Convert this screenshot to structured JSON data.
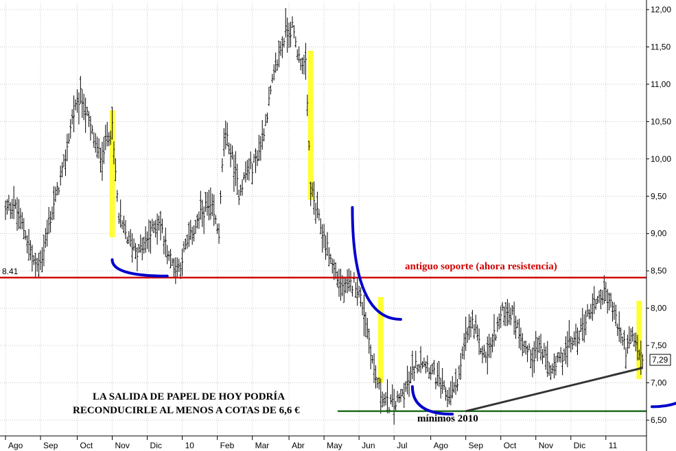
{
  "chart_data": {
    "type": "bar",
    "subtype": "ohlc-price-chart",
    "grid": true,
    "y_axis": {
      "position": "right",
      "ticks": [
        "6,50",
        "7,00",
        "7,50",
        "8,00",
        "8,50",
        "9,00",
        "9,50",
        "10,00",
        "10,50",
        "11,00",
        "11,50",
        "12,00"
      ],
      "tick_values": [
        6.5,
        7.0,
        7.5,
        8.0,
        8.5,
        9.0,
        9.5,
        10.0,
        10.5,
        11.0,
        11.5,
        12.0
      ],
      "ylim": [
        6.5,
        12.0
      ]
    },
    "x_axis": {
      "ticks": [
        "Ago",
        "Sep",
        "Oct",
        "Nov",
        "Dic",
        "10",
        "Feb",
        "Mar",
        "Abr",
        "May",
        "Jun",
        "Jul",
        "Ago",
        "Sep",
        "Oct",
        "Nov",
        "Dic",
        "11"
      ],
      "tick_index": [
        0,
        21,
        43,
        64,
        85,
        106,
        127,
        148,
        170,
        191,
        212,
        233,
        255,
        276,
        297,
        318,
        339,
        360
      ],
      "n_points": 383
    },
    "price_path": [
      [
        0,
        9.3
      ],
      [
        5,
        9.4
      ],
      [
        12,
        9.0
      ],
      [
        18,
        8.55
      ],
      [
        22,
        8.7
      ],
      [
        28,
        9.3
      ],
      [
        35,
        9.9
      ],
      [
        40,
        10.55
      ],
      [
        45,
        10.85
      ],
      [
        50,
        10.5
      ],
      [
        55,
        10.1
      ],
      [
        58,
        10.05
      ],
      [
        61,
        10.3
      ],
      [
        64,
        10.4
      ],
      [
        68,
        9.2
      ],
      [
        74,
        8.9
      ],
      [
        80,
        8.75
      ],
      [
        86,
        8.95
      ],
      [
        92,
        9.2
      ],
      [
        96,
        8.85
      ],
      [
        100,
        8.6
      ],
      [
        104,
        8.55
      ],
      [
        108,
        8.8
      ],
      [
        112,
        9.0
      ],
      [
        116,
        9.2
      ],
      [
        120,
        9.35
      ],
      [
        124,
        9.3
      ],
      [
        128,
        9.0
      ],
      [
        131,
        10.3
      ],
      [
        134,
        10.2
      ],
      [
        137,
        9.9
      ],
      [
        140,
        9.55
      ],
      [
        144,
        9.8
      ],
      [
        148,
        9.9
      ],
      [
        152,
        10.1
      ],
      [
        156,
        10.5
      ],
      [
        160,
        11.0
      ],
      [
        164,
        11.4
      ],
      [
        168,
        11.7
      ],
      [
        172,
        11.75
      ],
      [
        176,
        11.35
      ],
      [
        180,
        11.25
      ],
      [
        183,
        9.6
      ],
      [
        187,
        9.25
      ],
      [
        191,
        8.95
      ],
      [
        195,
        8.65
      ],
      [
        199,
        8.4
      ],
      [
        203,
        8.25
      ],
      [
        207,
        8.3
      ],
      [
        210,
        8.35
      ],
      [
        214,
        8.05
      ],
      [
        218,
        7.6
      ],
      [
        221,
        7.15
      ],
      [
        225,
        6.85
      ],
      [
        229,
        6.72
      ],
      [
        233,
        6.7
      ],
      [
        237,
        6.8
      ],
      [
        241,
        6.95
      ],
      [
        245,
        7.2
      ],
      [
        249,
        7.3
      ],
      [
        253,
        7.25
      ],
      [
        257,
        7.1
      ],
      [
        261,
        6.95
      ],
      [
        265,
        6.8
      ],
      [
        269,
        6.9
      ],
      [
        273,
        7.2
      ],
      [
        276,
        7.6
      ],
      [
        280,
        7.8
      ],
      [
        284,
        7.5
      ],
      [
        288,
        7.35
      ],
      [
        292,
        7.55
      ],
      [
        296,
        7.85
      ],
      [
        300,
        8.0
      ],
      [
        304,
        7.9
      ],
      [
        308,
        7.7
      ],
      [
        312,
        7.45
      ],
      [
        316,
        7.35
      ],
      [
        320,
        7.5
      ],
      [
        324,
        7.3
      ],
      [
        328,
        7.15
      ],
      [
        332,
        7.3
      ],
      [
        336,
        7.45
      ],
      [
        340,
        7.55
      ],
      [
        344,
        7.65
      ],
      [
        348,
        7.85
      ],
      [
        352,
        8.05
      ],
      [
        356,
        8.15
      ],
      [
        360,
        8.2
      ],
      [
        364,
        8.0
      ],
      [
        368,
        7.7
      ],
      [
        372,
        7.45
      ],
      [
        376,
        7.6
      ],
      [
        379,
        7.45
      ],
      [
        382,
        7.29
      ]
    ],
    "last_price_label": "7,29",
    "left_price_label": "8.41",
    "annotations": {
      "resistance_label": "antiguo soporte (ahora resistencia)",
      "resistance_level": 8.41,
      "support_level": 6.62,
      "lows_label": "mínimos 2010",
      "forecast_line1": "LA SALIDA DE PAPEL DE HOY PODRÍA",
      "forecast_line2": "RECONDUCIRLE AL MENOS A COTAS DE 6,6 €",
      "trendline": [
        [
          276,
          6.62
        ],
        [
          382,
          7.2
        ]
      ],
      "highlight_bars": [
        {
          "index": 64,
          "from": 8.95,
          "to": 10.65
        },
        {
          "index": 183,
          "from": 9.45,
          "to": 11.45
        },
        {
          "index": 225,
          "from": 7.0,
          "to": 8.15
        },
        {
          "index": 380,
          "from": 7.05,
          "to": 8.1
        }
      ],
      "blue_arcs": [
        {
          "from_index": 64,
          "to_index": 97,
          "top": 8.65,
          "bottom": 8.43
        },
        {
          "from_index": 208,
          "to_index": 237,
          "top": 9.35,
          "bottom": 7.85
        },
        {
          "from_index": 244,
          "to_index": 268,
          "top": 6.95,
          "bottom": 6.58
        },
        {
          "from_index": 418,
          "to_index": 440,
          "top": 7.3,
          "bottom": 6.68
        }
      ]
    },
    "colors": {
      "resistance_line": "#d00000",
      "support_line": "#1b6b1b",
      "trendline": "#333333",
      "highlight": "#ffff33",
      "arcs": "#0000cc",
      "bars": "#000000",
      "grid": "#c8c8c8"
    }
  }
}
